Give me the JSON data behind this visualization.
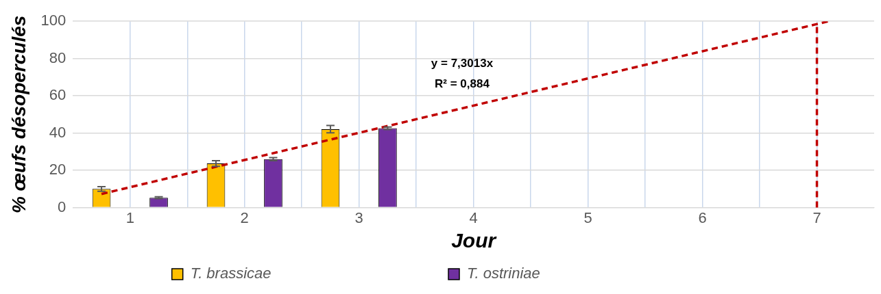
{
  "chart_data": {
    "type": "bar",
    "xlabel": "Jour",
    "ylabel": "% œufs désoperculés",
    "x": [
      1,
      2,
      3
    ],
    "series": [
      {
        "name": "T. brassicae",
        "color": "#ffc000",
        "values": [
          10,
          23.7,
          42.1
        ],
        "errors": [
          1.2,
          1.5,
          2
        ]
      },
      {
        "name": "T. ostriniae",
        "color": "#7030a0",
        "values": [
          5.3,
          26,
          42.6
        ],
        "errors": [
          0.5,
          0.8,
          0.7
        ]
      },
      {
        "type": "line",
        "color": "#c00000",
        "x": [
          0.75,
          7.1
        ],
        "values": [
          7.3,
          100
        ],
        "line_style": "dashed",
        "marker": "none"
      }
    ],
    "xlim": [
      0.5,
      7.5
    ],
    "xticks": [
      1,
      {
        "value": 1.5,
        "label": null
      },
      2,
      {
        "value": 2.5,
        "label": null
      },
      3,
      {
        "value": 3.5,
        "label": null
      },
      4,
      {
        "value": 4.5,
        "label": null
      },
      5,
      {
        "value": 5.5,
        "label": null
      },
      6,
      {
        "value": 6.5,
        "label": null
      },
      7
    ],
    "ylim": [
      0,
      100
    ],
    "yticks": [
      0,
      20,
      40,
      60,
      80,
      100
    ],
    "ref_lines": [
      {
        "axis": "x",
        "value": 7,
        "color": "#c00000",
        "line_style": "dashed"
      }
    ],
    "annotations": [
      "y = 7,3013x",
      "R² = 0,884"
    ],
    "grid": true,
    "legend": "bottom"
  }
}
